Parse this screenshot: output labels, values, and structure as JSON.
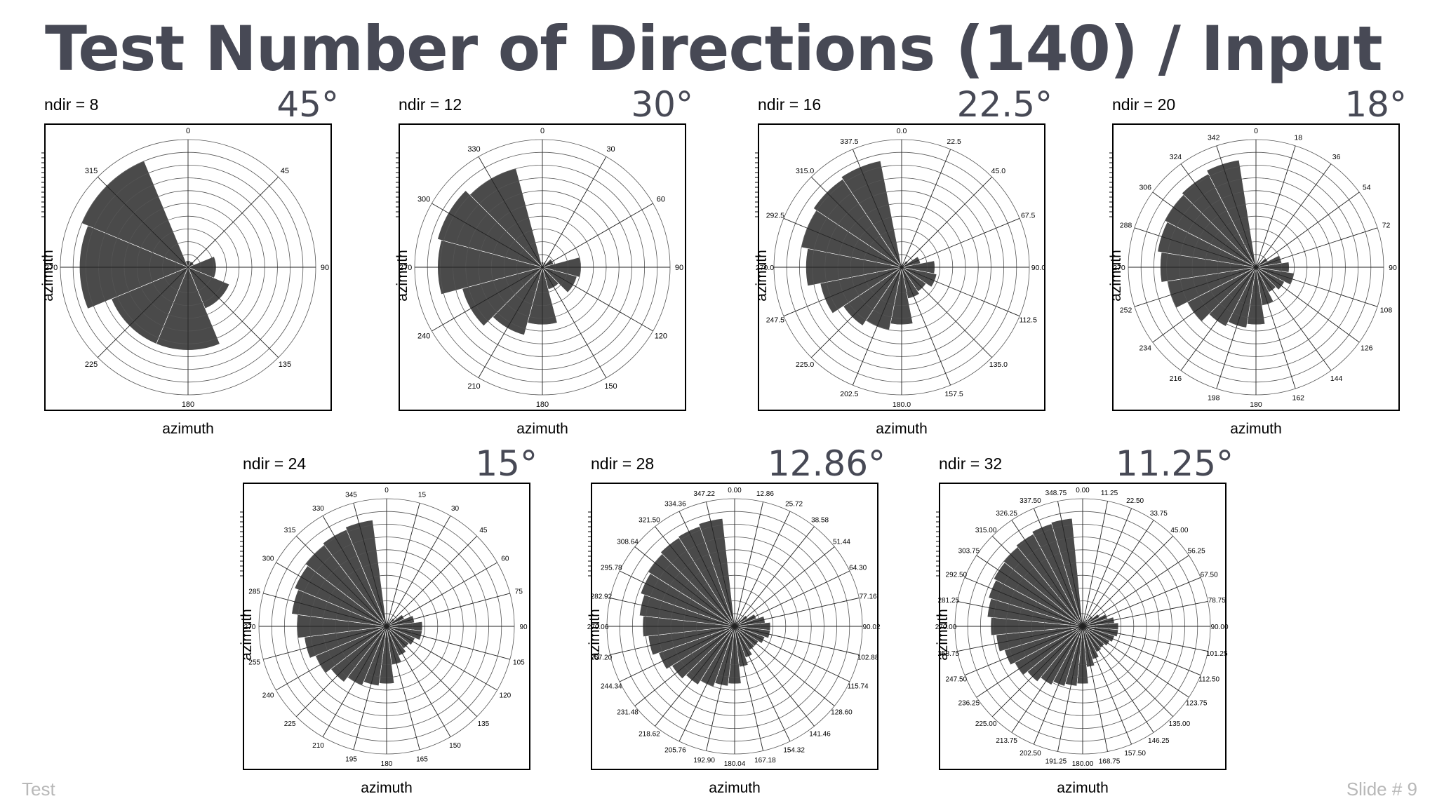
{
  "title": "Test Number of Directions (140) / Input",
  "footer": {
    "left": "Test",
    "right": "Slide #  9"
  },
  "colors": {
    "title": "#474955",
    "bar": "#4a4a4a",
    "grid": "#555555"
  },
  "chart_data": [
    {
      "type": "rose",
      "ndir_label": "ndir = 8",
      "angle_label": "45°",
      "xlabel": "azimuth",
      "ylabel": "azimuth",
      "rlim": [
        0,
        10
      ],
      "tick_labels": [
        "0",
        "45",
        "90",
        "135",
        "180",
        "225",
        "270",
        "315"
      ],
      "values": [
        0.5,
        0.5,
        2.2,
        3.5,
        6.5,
        6.5,
        8.5,
        9.0
      ]
    },
    {
      "type": "rose",
      "ndir_label": "ndir = 12",
      "angle_label": "30°",
      "xlabel": "azimuth",
      "ylabel": "azimuth",
      "rlim": [
        0,
        10
      ],
      "tick_labels": [
        "0",
        "30",
        "60",
        "90",
        "120",
        "150",
        "180",
        "210",
        "240",
        "270",
        "300",
        "330"
      ],
      "values": [
        0.4,
        0.4,
        0.9,
        3.0,
        2.8,
        1.8,
        4.5,
        5.5,
        6.5,
        8.2,
        8.5,
        8.0
      ]
    },
    {
      "type": "rose",
      "ndir_label": "ndir = 16",
      "angle_label": "22.5°",
      "xlabel": "azimuth",
      "ylabel": "azimuth",
      "rlim": [
        0,
        10
      ],
      "tick_labels": [
        "0.0",
        "22.5",
        "45.0",
        "67.5",
        "90.0",
        "112.5",
        "135.0",
        "157.5",
        "180.0",
        "202.5",
        "225.0",
        "247.5",
        "270.0",
        "292.5",
        "315.0",
        "337.5"
      ],
      "values": [
        0.3,
        0.3,
        0.6,
        1.5,
        2.6,
        2.8,
        2.3,
        2.5,
        4.5,
        5.0,
        5.5,
        6.5,
        7.5,
        8.0,
        8.3,
        8.5
      ]
    },
    {
      "type": "rose",
      "ndir_label": "ndir = 20",
      "angle_label": "18°",
      "xlabel": "azimuth",
      "ylabel": "azimuth",
      "rlim": [
        0,
        10
      ],
      "tick_labels": [
        "0",
        "18",
        "36",
        "54",
        "72",
        "90",
        "108",
        "126",
        "144",
        "162",
        "180",
        "198",
        "216",
        "234",
        "252",
        "270",
        "288",
        "306",
        "324",
        "342"
      ],
      "values": [
        0.3,
        0.3,
        0.5,
        1.0,
        2.0,
        2.6,
        3.0,
        2.5,
        2.2,
        3.0,
        4.5,
        4.8,
        5.2,
        6.0,
        7.0,
        7.5,
        7.8,
        8.0,
        8.2,
        8.5
      ]
    },
    {
      "type": "rose",
      "ndir_label": "ndir = 24",
      "angle_label": "15°",
      "xlabel": "azimuth",
      "ylabel": "azimuth",
      "rlim": [
        0,
        10
      ],
      "tick_labels": [
        "0",
        "15",
        "30",
        "45",
        "60",
        "75",
        "90",
        "105",
        "120",
        "135",
        "150",
        "165",
        "180",
        "195",
        "210",
        "225",
        "240",
        "255",
        "270",
        "285",
        "300",
        "315",
        "330",
        "345"
      ],
      "values": [
        0.3,
        0.3,
        0.4,
        0.8,
        1.5,
        2.2,
        2.8,
        2.8,
        2.4,
        2.2,
        2.5,
        3.0,
        4.5,
        4.7,
        5.0,
        5.5,
        6.0,
        6.5,
        7.0,
        7.5,
        7.8,
        8.0,
        8.2,
        8.4
      ]
    },
    {
      "type": "rose",
      "ndir_label": "ndir = 28",
      "angle_label": "12.86°",
      "xlabel": "azimuth",
      "ylabel": "azimuth",
      "rlim": [
        0,
        10
      ],
      "tick_labels": [
        "0.00",
        "12.86",
        "25.72",
        "38.58",
        "51.44",
        "64.30",
        "77.16",
        "90.02",
        "102.88",
        "115.74",
        "128.60",
        "141.46",
        "154.32",
        "167.18",
        "180.04",
        "192.90",
        "205.76",
        "218.62",
        "231.48",
        "244.34",
        "257.20",
        "270.06",
        "282.92",
        "295.78",
        "308.64",
        "321.50",
        "334.36",
        "347.22"
      ],
      "values": [
        0.3,
        0.3,
        0.4,
        0.7,
        1.2,
        1.8,
        2.4,
        2.8,
        2.8,
        2.5,
        2.2,
        2.2,
        2.6,
        3.2,
        4.5,
        4.7,
        5.0,
        5.4,
        5.8,
        6.3,
        6.8,
        7.2,
        7.5,
        7.8,
        8.0,
        8.2,
        8.3,
        8.5
      ]
    },
    {
      "type": "rose",
      "ndir_label": "ndir = 32",
      "angle_label": "11.25°",
      "xlabel": "azimuth",
      "ylabel": "azimuth",
      "rlim": [
        0,
        10
      ],
      "tick_labels": [
        "0.00",
        "11.25",
        "22.50",
        "33.75",
        "45.00",
        "56.25",
        "67.50",
        "78.75",
        "90.00",
        "101.25",
        "112.50",
        "123.75",
        "135.00",
        "146.25",
        "157.50",
        "168.75",
        "180.00",
        "191.25",
        "202.50",
        "213.75",
        "225.00",
        "236.25",
        "247.50",
        "258.75",
        "270.00",
        "281.25",
        "292.50",
        "303.75",
        "315.00",
        "326.25",
        "337.50",
        "348.75"
      ],
      "values": [
        0.3,
        0.3,
        0.4,
        0.6,
        1.0,
        1.5,
        2.0,
        2.5,
        2.8,
        2.8,
        2.6,
        2.4,
        2.2,
        2.3,
        2.7,
        3.2,
        4.5,
        4.7,
        4.9,
        5.2,
        5.6,
        6.0,
        6.4,
        6.8,
        7.2,
        7.5,
        7.7,
        7.9,
        8.0,
        8.2,
        8.4,
        8.5
      ]
    }
  ]
}
